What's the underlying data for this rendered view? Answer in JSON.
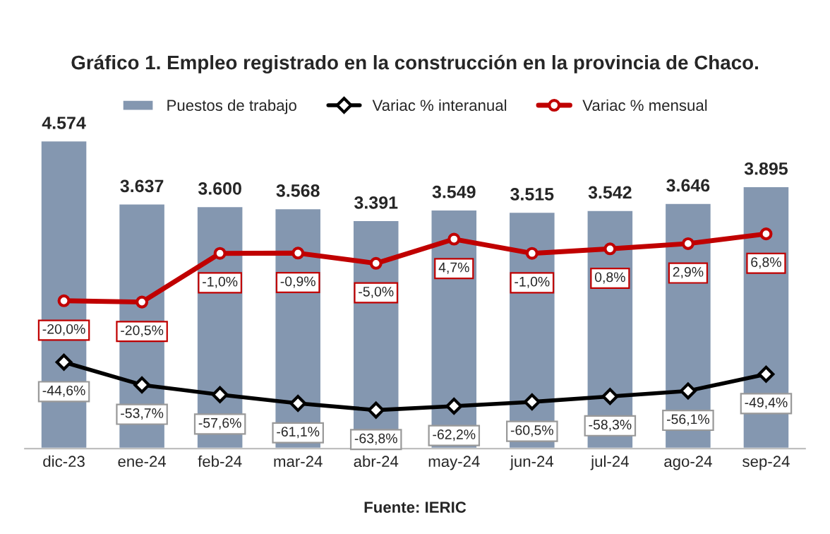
{
  "chart_data": {
    "type": "bar",
    "title": "Gráfico 1. Empleo registrado en la construcción en la provincia de Chaco.",
    "categories": [
      "dic-23",
      "ene-24",
      "feb-24",
      "mar-24",
      "abr-24",
      "may-24",
      "jun-24",
      "jul-24",
      "ago-24",
      "sep-24"
    ],
    "series": [
      {
        "name": "Puestos de trabajo",
        "color": "#8497b0",
        "values": [
          4574,
          3637,
          3600,
          3568,
          3391,
          3549,
          3515,
          3542,
          3646,
          3895
        ],
        "value_labels": [
          "4.574",
          "3.637",
          "3.600",
          "3.568",
          "3.391",
          "3.549",
          "3.515",
          "3.542",
          "3.646",
          "3.895"
        ]
      },
      {
        "name": "Variac % interanual",
        "type": "line",
        "axis": "y2",
        "marker": "diamond",
        "color": "#000000",
        "values": [
          -44.6,
          -53.7,
          -57.6,
          -61.1,
          -63.8,
          -62.2,
          -60.5,
          -58.3,
          -56.1,
          -49.4
        ],
        "value_labels": [
          "-44,6%",
          "-53,7%",
          "-57,6%",
          "-61,1%",
          "-63,8%",
          "-62,2%",
          "-60,5%",
          "-58,3%",
          "-56,1%",
          "-49,4%"
        ]
      },
      {
        "name": "Variac % mensual",
        "type": "line",
        "axis": "y2",
        "marker": "circle",
        "color": "#c00000",
        "values": [
          -20.0,
          -20.5,
          -1.0,
          -0.9,
          -5.0,
          4.7,
          -1.0,
          0.8,
          2.9,
          6.8
        ],
        "value_labels": [
          "-20,0%",
          "-20,5%",
          "-1,0%",
          "-0,9%",
          "-5,0%",
          "4,7%",
          "-1,0%",
          "0,8%",
          "2,9%",
          "6,8%"
        ]
      }
    ],
    "legend": "top",
    "annotations": [
      "Fuente: IERIC"
    ]
  }
}
